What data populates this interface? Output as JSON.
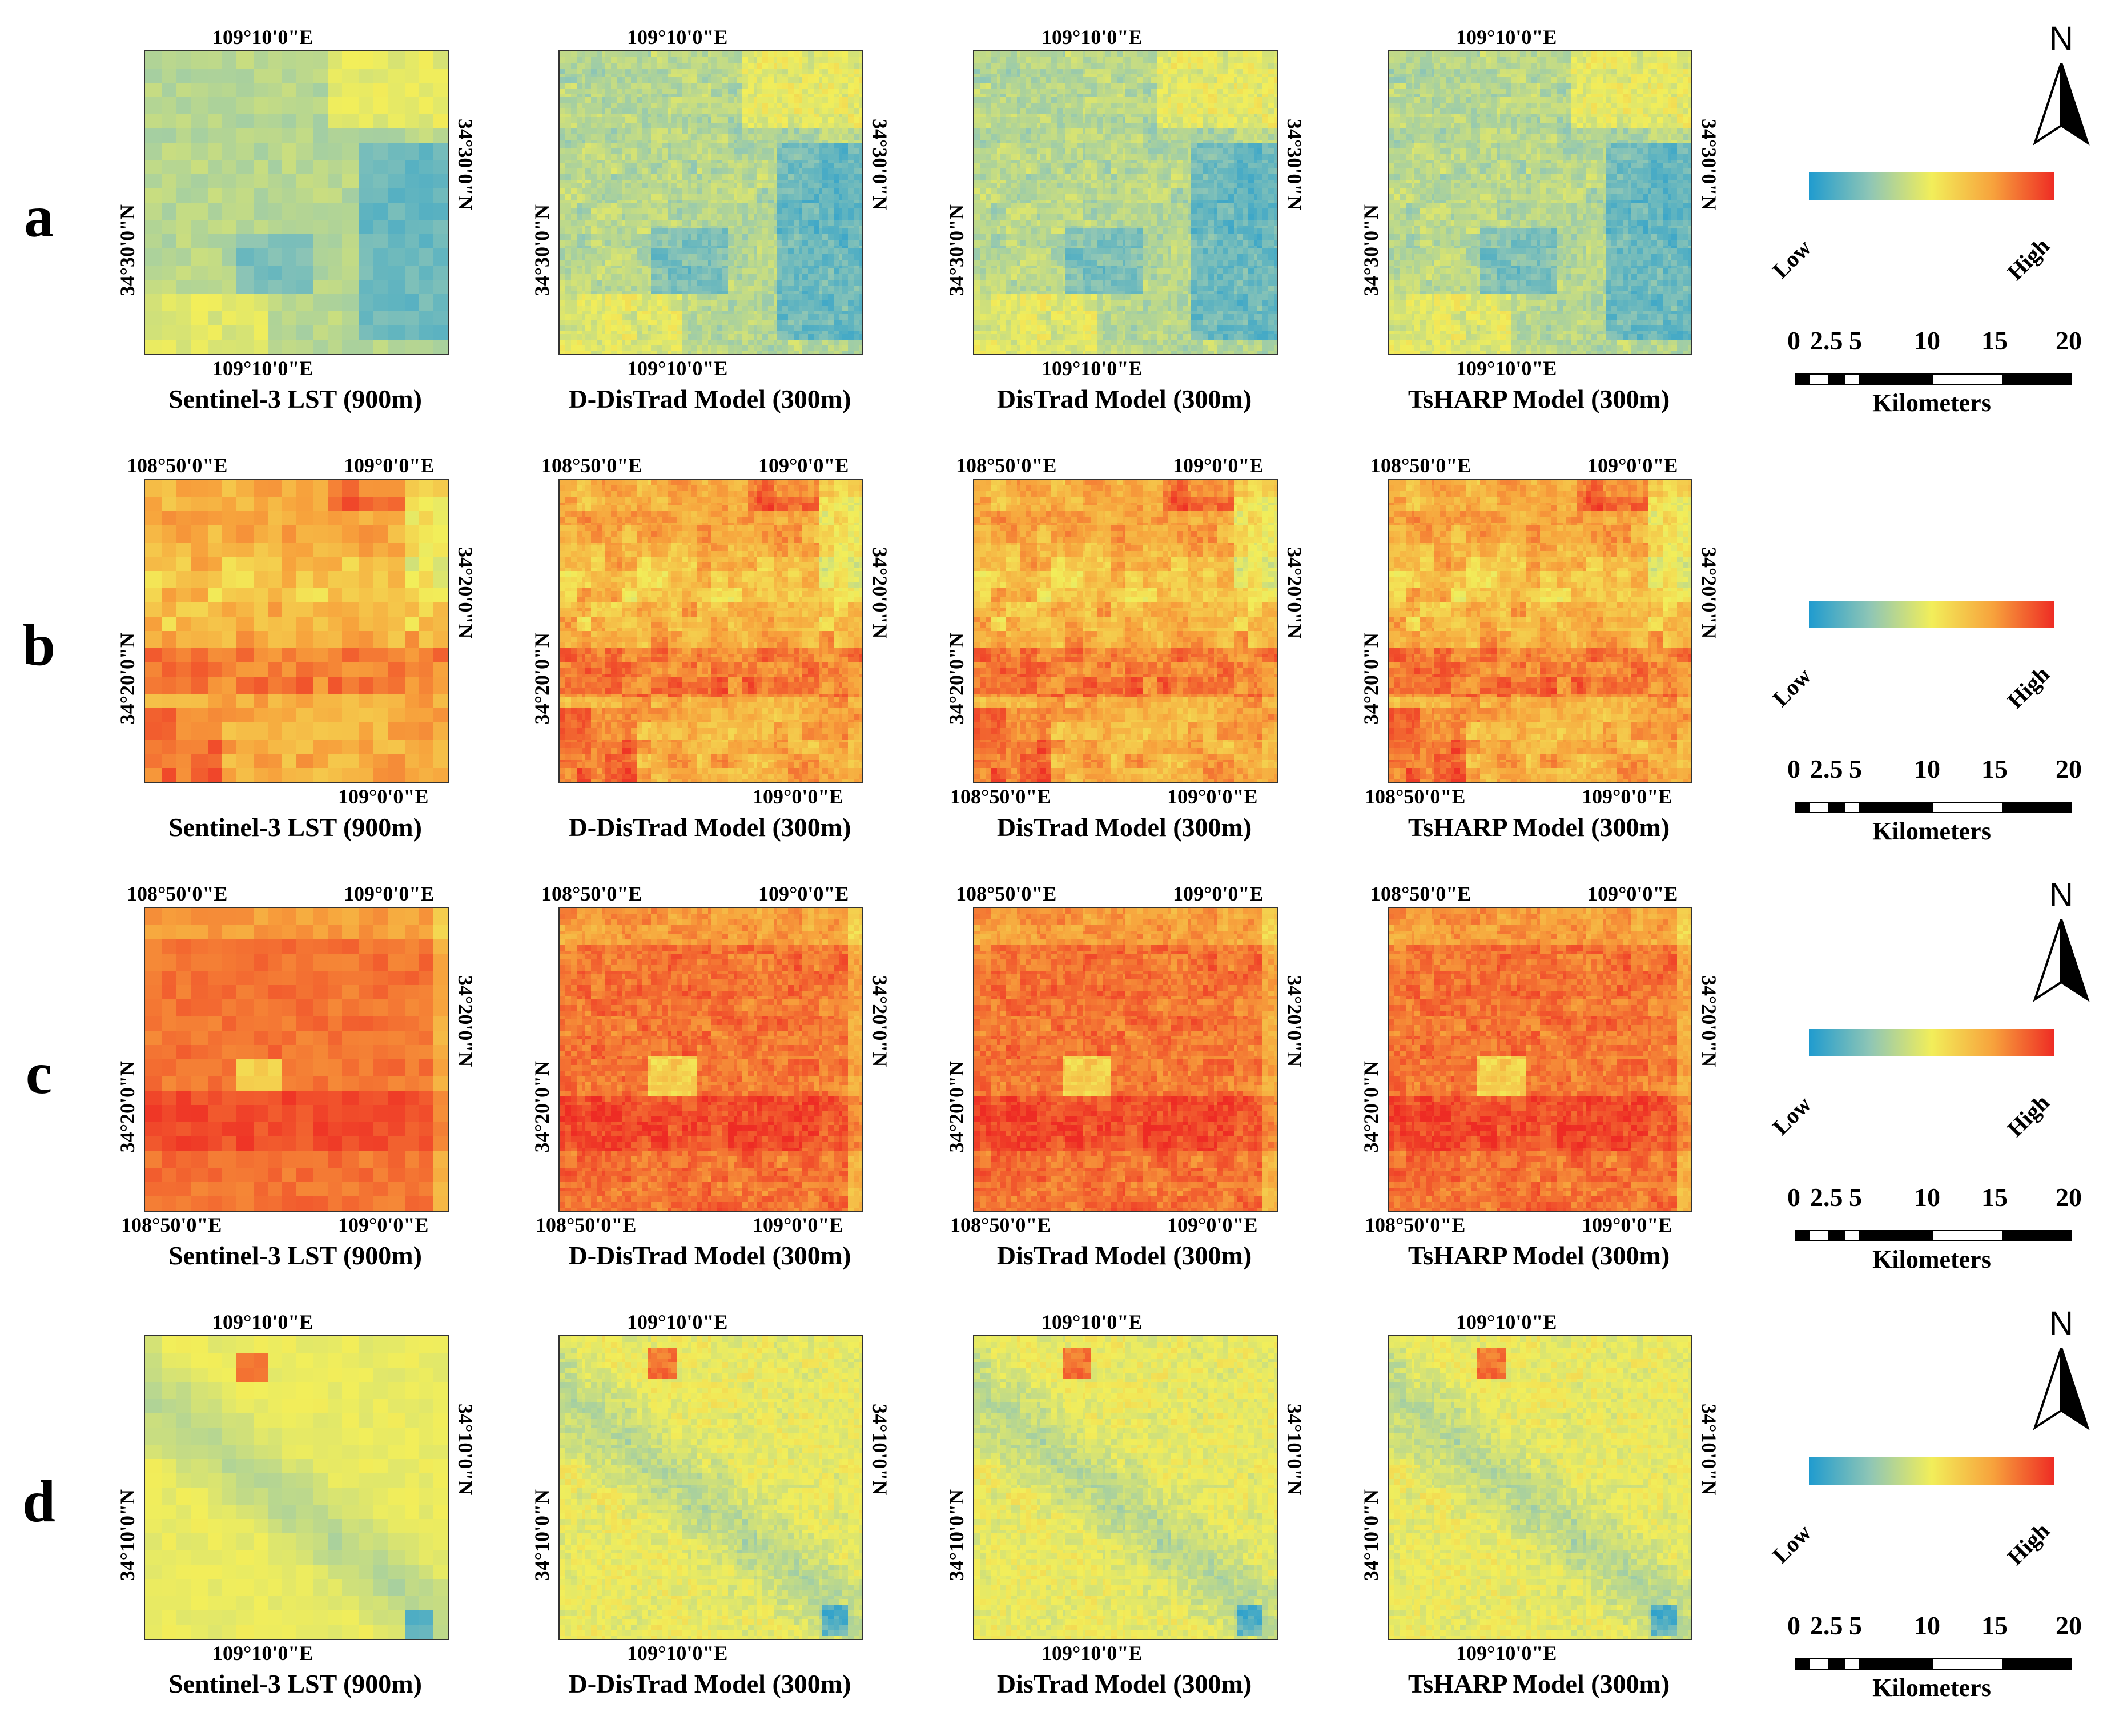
{
  "rows": [
    {
      "label": "a",
      "pattern": "a",
      "panels": [
        {
          "title": "Sentinel-3 LST (900m)",
          "top_lon": "109°10'0\"E",
          "bottom_lon": "109°10'0\"E",
          "left_lat": "34°30'0\"N",
          "right_lat": "34°30'0\"N",
          "top_lon_2": "",
          "bottom_lon_2": "",
          "res": 20
        },
        {
          "title": "D-DisTrad Model (300m)",
          "top_lon": "109°10'0\"E",
          "bottom_lon": "109°10'0\"E",
          "left_lat": "34°30'0\"N",
          "right_lat": "34°30'0\"N",
          "top_lon_2": "",
          "bottom_lon_2": "",
          "res": 60
        },
        {
          "title": "DisTrad Model (300m)",
          "top_lon": "109°10'0\"E",
          "bottom_lon": "109°10'0\"E",
          "left_lat": "34°30'0\"N",
          "right_lat": "34°30'0\"N",
          "top_lon_2": "",
          "bottom_lon_2": "",
          "res": 60
        },
        {
          "title": "TsHARP Model (300m)",
          "top_lon": "109°10'0\"E",
          "bottom_lon": "109°10'0\"E",
          "left_lat": "34°30'0\"N",
          "right_lat": "34°30'0\"N",
          "top_lon_2": "",
          "bottom_lon_2": "",
          "res": 60
        }
      ],
      "north": true
    },
    {
      "label": "b",
      "pattern": "b",
      "panels": [
        {
          "title": "Sentinel-3 LST (900m)",
          "top_lon": "108°50'0\"E",
          "top_lon_2": "109°0'0\"E",
          "bottom_lon": "",
          "bottom_lon_2": "109°0'0\"E",
          "left_lat": "34°20'0\"N",
          "right_lat": "34°20'0\"N",
          "res": 20
        },
        {
          "title": "D-DisTrad Model (300m)",
          "top_lon": "108°50'0\"E",
          "top_lon_2": "109°0'0\"E",
          "bottom_lon": "",
          "bottom_lon_2": "109°0'0\"E",
          "left_lat": "34°20'0\"N",
          "right_lat": "34°20'0\"N",
          "res": 60
        },
        {
          "title": "DisTrad Model (300m)",
          "top_lon": "108°50'0\"E",
          "top_lon_2": "109°0'0\"E",
          "bottom_lon": "108°50'0\"E",
          "bottom_lon_2": "109°0'0\"E",
          "left_lat": "34°20'0\"N",
          "right_lat": "34°20'0\"N",
          "res": 60
        },
        {
          "title": "TsHARP Model (300m)",
          "top_lon": "108°50'0\"E",
          "top_lon_2": "109°0'0\"E",
          "bottom_lon": "108°50'0\"E",
          "bottom_lon_2": "109°0'0\"E",
          "left_lat": "34°20'0\"N",
          "right_lat": "34°20'0\"N",
          "res": 60
        }
      ],
      "north": false
    },
    {
      "label": "c",
      "pattern": "c",
      "panels": [
        {
          "title": "Sentinel-3 LST (900m)",
          "top_lon": "108°50'0\"E",
          "top_lon_2": "109°0'0\"E",
          "bottom_lon": "108°50'0\"E",
          "bottom_lon_2": "109°0'0\"E",
          "left_lat": "34°20'0\"N",
          "right_lat": "34°20'0\"N",
          "res": 20
        },
        {
          "title": "D-DisTrad Model (300m)",
          "top_lon": "108°50'0\"E",
          "top_lon_2": "109°0'0\"E",
          "bottom_lon": "108°50'0\"E",
          "bottom_lon_2": "109°0'0\"E",
          "left_lat": "34°20'0\"N",
          "right_lat": "34°20'0\"N",
          "res": 60
        },
        {
          "title": "DisTrad Model (300m)",
          "top_lon": "108°50'0\"E",
          "top_lon_2": "109°0'0\"E",
          "bottom_lon": "108°50'0\"E",
          "bottom_lon_2": "109°0'0\"E",
          "left_lat": "34°20'0\"N",
          "right_lat": "34°20'0\"N",
          "res": 60
        },
        {
          "title": "TsHARP Model (300m)",
          "top_lon": "108°50'0\"E",
          "top_lon_2": "109°0'0\"E",
          "bottom_lon": "108°50'0\"E",
          "bottom_lon_2": "109°0'0\"E",
          "left_lat": "34°20'0\"N",
          "right_lat": "34°20'0\"N",
          "res": 60
        }
      ],
      "north": true
    },
    {
      "label": "d",
      "pattern": "d",
      "panels": [
        {
          "title": "Sentinel-3 LST (900m)",
          "top_lon": "109°10'0\"E",
          "bottom_lon": "109°10'0\"E",
          "left_lat": "34°10'0\"N",
          "right_lat": "34°10'0\"N",
          "top_lon_2": "",
          "bottom_lon_2": "",
          "res": 20
        },
        {
          "title": "D-DisTrad Model (300m)",
          "top_lon": "109°10'0\"E",
          "bottom_lon": "109°10'0\"E",
          "left_lat": "34°10'0\"N",
          "right_lat": "34°10'0\"N",
          "top_lon_2": "",
          "bottom_lon_2": "",
          "res": 60
        },
        {
          "title": "DisTrad Model (300m)",
          "top_lon": "109°10'0\"E",
          "bottom_lon": "109°10'0\"E",
          "left_lat": "34°10'0\"N",
          "right_lat": "34°10'0\"N",
          "top_lon_2": "",
          "bottom_lon_2": "",
          "res": 60
        },
        {
          "title": "TsHARP Model (300m)",
          "top_lon": "109°10'0\"E",
          "bottom_lon": "109°10'0\"E",
          "left_lat": "34°10'0\"N",
          "right_lat": "34°10'0\"N",
          "top_lon_2": "",
          "bottom_lon_2": "",
          "res": 60
        }
      ],
      "north": true
    }
  ],
  "legend": {
    "low": "Low",
    "high": "High",
    "colors": [
      "#1f9bcf",
      "#8fc6b5",
      "#f2ee5a",
      "#f7a23c",
      "#ee2b24"
    ]
  },
  "north_label": "N",
  "scale": {
    "ticks": [
      "0",
      "2.5",
      "5",
      "10",
      "15",
      "20"
    ],
    "unit": "Kilometers"
  }
}
